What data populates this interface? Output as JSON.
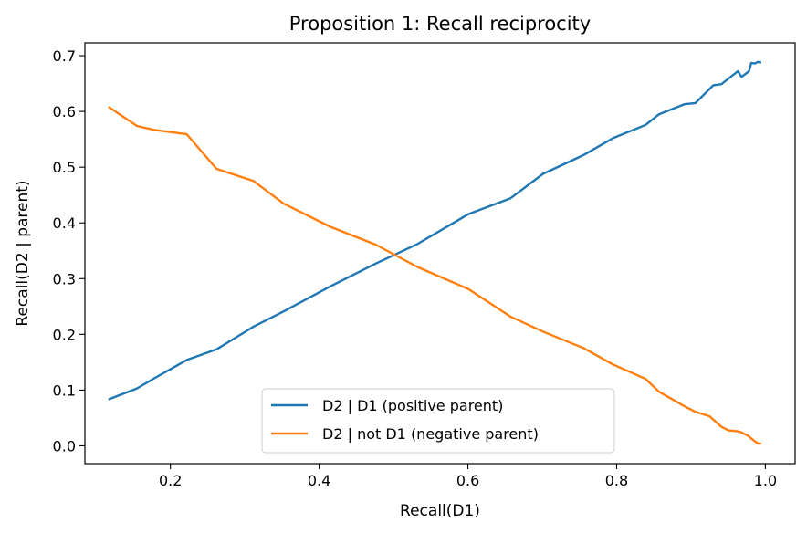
{
  "chart_data": {
    "type": "line",
    "title": "Proposition 1: Recall reciprocity",
    "xlabel": "Recall(D1)",
    "ylabel": "Recall(D2 | parent)",
    "xlim": [
      0.085,
      1.04
    ],
    "ylim": [
      -0.032,
      0.723
    ],
    "xticks": [
      0.2,
      0.4,
      0.6,
      0.8,
      1.0
    ],
    "xtick_labels": [
      "0.2",
      "0.4",
      "0.6",
      "0.8",
      "1.0"
    ],
    "yticks": [
      0.0,
      0.1,
      0.2,
      0.3,
      0.4,
      0.5,
      0.6,
      0.7
    ],
    "ytick_labels": [
      "0.0",
      "0.1",
      "0.2",
      "0.3",
      "0.4",
      "0.5",
      "0.6",
      "0.7"
    ],
    "grid": false,
    "legend_position": "bottom-center",
    "series": [
      {
        "name": "D2 | D1 (positive parent)",
        "color": "#1f77b4",
        "x": [
          0.118,
          0.155,
          0.178,
          0.222,
          0.262,
          0.312,
          0.352,
          0.415,
          0.476,
          0.532,
          0.601,
          0.657,
          0.701,
          0.756,
          0.795,
          0.839,
          0.857,
          0.891,
          0.906,
          0.93,
          0.941,
          0.963,
          0.968,
          0.978,
          0.981,
          0.986,
          0.99,
          0.993
        ],
        "y": [
          0.084,
          0.103,
          0.121,
          0.154,
          0.173,
          0.214,
          0.241,
          0.286,
          0.327,
          0.362,
          0.416,
          0.444,
          0.488,
          0.522,
          0.552,
          0.576,
          0.595,
          0.613,
          0.615,
          0.647,
          0.649,
          0.672,
          0.662,
          0.672,
          0.687,
          0.686,
          0.689,
          0.688
        ]
      },
      {
        "name": "D2 | not D1 (negative parent)",
        "color": "#ff7f0e",
        "x": [
          0.118,
          0.155,
          0.178,
          0.222,
          0.262,
          0.312,
          0.352,
          0.415,
          0.476,
          0.532,
          0.601,
          0.657,
          0.701,
          0.756,
          0.795,
          0.839,
          0.857,
          0.891,
          0.906,
          0.925,
          0.941,
          0.95,
          0.963,
          0.968,
          0.978,
          0.981,
          0.986,
          0.99,
          0.993
        ],
        "y": [
          0.607,
          0.574,
          0.567,
          0.559,
          0.497,
          0.475,
          0.435,
          0.393,
          0.361,
          0.321,
          0.281,
          0.232,
          0.205,
          0.175,
          0.146,
          0.12,
          0.097,
          0.071,
          0.061,
          0.053,
          0.034,
          0.028,
          0.026,
          0.024,
          0.017,
          0.013,
          0.008,
          0.004,
          0.004
        ]
      }
    ]
  }
}
